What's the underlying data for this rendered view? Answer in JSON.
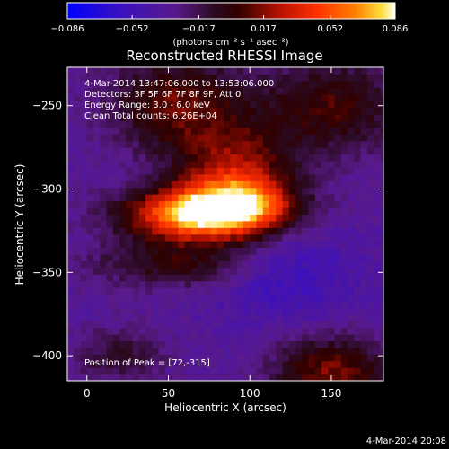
{
  "chart_data": {
    "type": "heatmap",
    "title": "Reconstructed RHESSI Image",
    "xlabel": "Heliocentric X (arcsec)",
    "ylabel": "Heliocentric Y (arcsec)",
    "colorbar": {
      "min": -0.086,
      "max": 0.086,
      "ticks": [
        -0.086,
        -0.052,
        -0.017,
        0.017,
        0.052,
        0.086
      ],
      "tick_labels": [
        "−0.086",
        "−0.052",
        "−0.017",
        "0.017",
        "0.052",
        "0.086"
      ],
      "unit_label": "(photons cm⁻² s⁻¹ asec⁻²)",
      "colors": [
        "#0000ff",
        "#3a10c0",
        "#5a1a8a",
        "#2a0a20",
        "#300000",
        "#b01000",
        "#ff3000",
        "#ff8000",
        "#ffe040",
        "#ffffff"
      ]
    },
    "x_range": [
      -12,
      182
    ],
    "y_range": [
      -415,
      -227
    ],
    "x_ticks": [
      0,
      50,
      100,
      150
    ],
    "y_ticks": [
      -250,
      -300,
      -350,
      -400
    ],
    "annotations": [
      "4-Mar-2014 13:47:06.000 to 13:53:06.000",
      "Detectors: 3F 5F 6F 7F 8F 9F, Att 0",
      "Energy Range: 3.0 - 6.0 keV",
      "Clean     Total counts: 6.26E+04"
    ],
    "peak_position": "Position of Peak = [72,-315]",
    "peak_xy": [
      72,
      -315
    ],
    "grid": false
  },
  "footer": {
    "timestamp": "4-Mar-2014 20:08"
  }
}
